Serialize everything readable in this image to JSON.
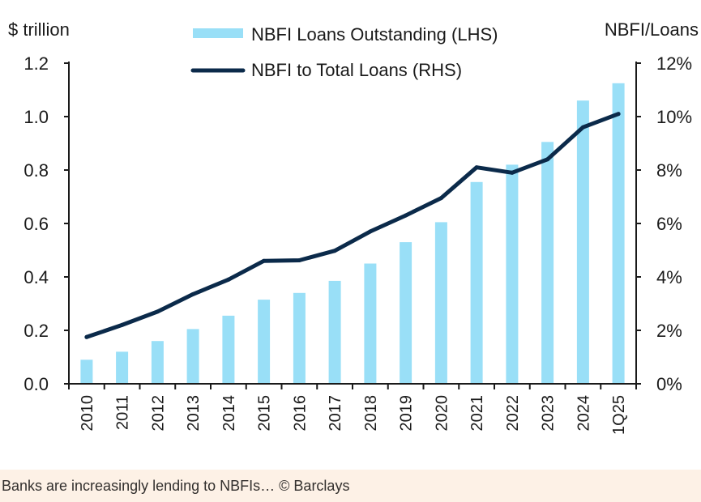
{
  "chart_data": {
    "type": "bar",
    "categories": [
      "2010",
      "2011",
      "2012",
      "2013",
      "2014",
      "2015",
      "2016",
      "2017",
      "2018",
      "2019",
      "2020",
      "2021",
      "2022",
      "2023",
      "2024",
      "1Q25"
    ],
    "series": [
      {
        "name": "NBFI Loans Outstanding (LHS)",
        "type": "bar",
        "axis": "left",
        "color": "#99dff7",
        "values": [
          0.09,
          0.12,
          0.16,
          0.205,
          0.255,
          0.315,
          0.34,
          0.385,
          0.45,
          0.53,
          0.605,
          0.755,
          0.82,
          0.905,
          1.06,
          1.125
        ]
      },
      {
        "name": "NBFI to Total Loans (RHS)",
        "type": "line",
        "axis": "right",
        "color": "#0b2a4a",
        "values": [
          1.75,
          2.2,
          2.7,
          3.35,
          3.9,
          4.6,
          4.62,
          4.98,
          5.7,
          6.3,
          6.95,
          8.1,
          7.9,
          8.4,
          9.6,
          10.1
        ]
      }
    ],
    "ylabel_left": "$ trillion",
    "ylabel_right": "NBFI/Loans",
    "ylim_left": [
      0,
      1.2
    ],
    "ylim_right": [
      0,
      12
    ],
    "yticks_left": [
      "0.0",
      "0.2",
      "0.4",
      "0.6",
      "0.8",
      "1.0",
      "1.2"
    ],
    "yticks_right": [
      "0%",
      "2%",
      "4%",
      "6%",
      "8%",
      "10%",
      "12%"
    ],
    "legend_placement": "top-center",
    "grid": false
  },
  "caption": "Banks are increasingly lending to NBFIs… © Barclays"
}
